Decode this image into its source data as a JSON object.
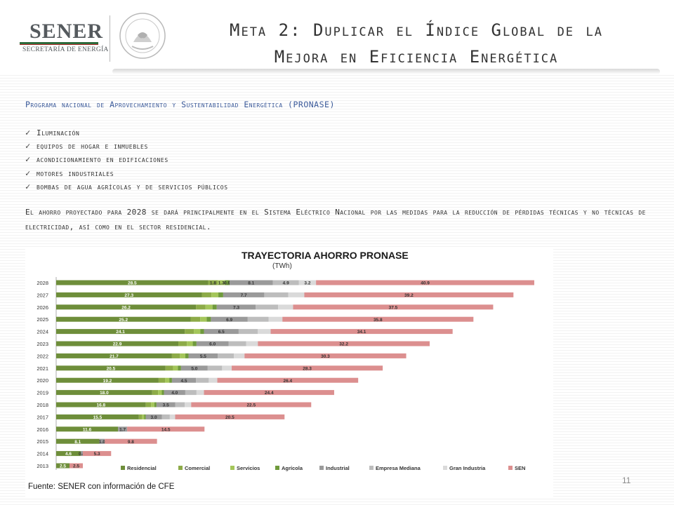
{
  "header": {
    "logo_text": "SENER",
    "logo_subtitle": "SECRETARÍA DE ENERGÍA",
    "title_line1": "Meta 2: Duplicar el Índice Global de la",
    "title_line2": "Mejora en Eficiencia Energética"
  },
  "program": {
    "title": "Programa nacional de Aprovechamiento y Sustentabilidad Energética (PRONASE)",
    "bullets": [
      "Iluminación",
      "equipos de hogar e inmuebles",
      "acondicionamiento en edificaciones",
      "motores industriales",
      "bombas de agua agrícolas y de servicios públicos"
    ],
    "paragraph": "El ahorro proyectado para 2028 se dará principalmente en el Sistema Eléctrico Nacional por las medidas para la reducción de pérdidas técnicas y no técnicas de electricidad, así como en el sector residencial."
  },
  "colors": {
    "residencial": "#6e8e3a",
    "comercial": "#8dab48",
    "servicios": "#a4c65a",
    "agricola": "#6f9a3c",
    "industrial": "#9a9a9a",
    "empresa_mediana": "#bdbdbd",
    "gran_industria": "#dadada",
    "sen": "#dc8f8f"
  },
  "chart_data": {
    "type": "bar",
    "orientation": "horizontal",
    "stacked": true,
    "title": "TRAYECTORIA AHORRO PRONASE",
    "unit": "(TWh)",
    "categories": [
      "2013",
      "2014",
      "2015",
      "2016",
      "2017",
      "2018",
      "2019",
      "2020",
      "2021",
      "2022",
      "2023",
      "2024",
      "2025",
      "2026",
      "2027",
      "2028"
    ],
    "series": [
      {
        "name": "Residencial",
        "color": "#6e8e3a",
        "values": [
          2.5,
          4.6,
          8.1,
          11.6,
          15.5,
          16.8,
          18.0,
          19.2,
          20.5,
          21.7,
          22.9,
          24.1,
          25.2,
          26.2,
          27.3,
          28.5
        ]
      },
      {
        "name": "Comercial",
        "color": "#8dab48",
        "values": [
          0,
          0,
          0,
          0,
          0.6,
          1.0,
          1.1,
          1.2,
          1.4,
          1.5,
          1.6,
          1.7,
          1.8,
          1.8,
          1.8,
          1.8
        ]
      },
      {
        "name": "Servicios",
        "color": "#a4c65a",
        "values": [
          0,
          0,
          0,
          0,
          0.4,
          0.6,
          0.7,
          0.8,
          0.9,
          1.0,
          1.1,
          1.2,
          1.2,
          1.3,
          1.3,
          1.3
        ]
      },
      {
        "name": "Agrícola",
        "color": "#6f9a3c",
        "values": [
          0,
          0,
          0,
          0,
          0.3,
          0.4,
          0.4,
          0.5,
          0.6,
          0.6,
          0.7,
          0.7,
          0.8,
          0.8,
          0.9,
          0.9
        ]
      },
      {
        "name": "Industrial",
        "color": "#9a9a9a",
        "values": [
          0,
          0.4,
          1.0,
          1.7,
          3.0,
          3.5,
          4.0,
          4.5,
          5.0,
          5.5,
          6.0,
          6.5,
          6.9,
          7.3,
          7.7,
          8.1
        ]
      },
      {
        "name": "Empresa Mediana",
        "color": "#bdbdbd",
        "values": [
          0,
          0,
          0,
          0,
          1.5,
          1.8,
          2.1,
          2.4,
          2.7,
          3.0,
          3.3,
          3.6,
          3.9,
          4.2,
          4.5,
          4.9
        ]
      },
      {
        "name": "Gran Industria",
        "color": "#dadada",
        "values": [
          0,
          0,
          0,
          0,
          1.0,
          1.2,
          1.4,
          1.6,
          1.8,
          2.0,
          2.2,
          2.4,
          2.6,
          2.8,
          3.0,
          3.2
        ]
      },
      {
        "name": "SEN",
        "color": "#dc8f8f",
        "values": [
          2.5,
          5.3,
          9.8,
          14.5,
          20.5,
          22.5,
          24.4,
          26.4,
          28.3,
          30.3,
          32.2,
          34.1,
          35.8,
          37.5,
          39.2,
          40.9
        ]
      }
    ],
    "labels": {
      "Residencial": [
        "2.5",
        "4.6",
        "8.1",
        "11.6",
        "15.5",
        "16.8",
        "18.0",
        "19.2",
        "20.5",
        "21.7",
        "22.9",
        "24.1",
        "25.2",
        "26.2",
        "27.3",
        "28.5"
      ],
      "Comercial": [
        "",
        "",
        "",
        "",
        "",
        "",
        "",
        "",
        "",
        "",
        "",
        "",
        "",
        "",
        "",
        "1.8"
      ],
      "Servicios": [
        "",
        "",
        "",
        "",
        "",
        "",
        "",
        "",
        "",
        "",
        "",
        "",
        "",
        "",
        "",
        "1.3"
      ],
      "Agrícola": [
        "",
        "",
        "",
        "",
        "",
        "",
        "",
        "",
        "",
        "",
        "",
        "",
        "",
        "",
        "",
        "0.9"
      ],
      "Industrial": [
        "",
        "0.4",
        "1.0",
        "1.7",
        "3.0",
        "3.5",
        "4.0",
        "4.5",
        "5.0",
        "5.5",
        "6.0",
        "6.5",
        "6.9",
        "7.3",
        "7.7",
        "8.1"
      ],
      "Empresa Mediana": [
        "",
        "",
        "",
        "",
        "",
        "",
        "",
        "",
        "",
        "",
        "",
        "",
        "",
        "",
        "",
        "4.9"
      ],
      "Gran Industria": [
        "",
        "",
        "",
        "",
        "",
        "",
        "",
        "",
        "",
        "",
        "",
        "",
        "",
        "",
        "",
        "3.2"
      ],
      "SEN": [
        "2.5",
        "5.3",
        "9.8",
        "14.5",
        "20.5",
        "22.5",
        "24.4",
        "26.4",
        "28.3",
        "30.3",
        "32.2",
        "34.1",
        "35.8",
        "37.5",
        "39.2",
        "40.9"
      ]
    },
    "legend_position": "bottom",
    "grid": false
  },
  "footer": {
    "source": "Fuente: SENER con información de CFE",
    "page_number": "11"
  }
}
